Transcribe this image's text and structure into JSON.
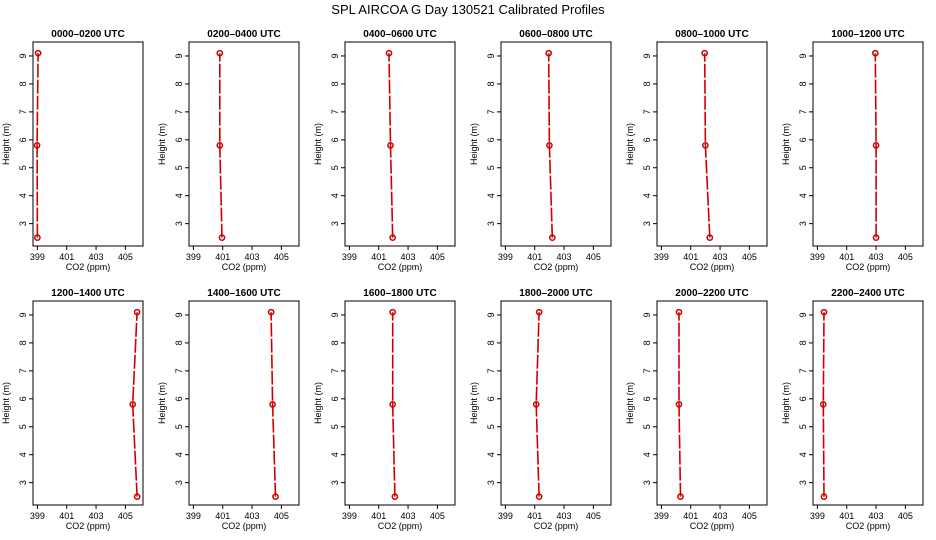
{
  "figure": {
    "title": "SPL AIRCOA G  Day 130521  Calibrated Profiles"
  },
  "colors": {
    "series": "#cc0000",
    "axis": "#000000"
  },
  "chart_data": [
    {
      "type": "line",
      "title": "0000–0200 UTC",
      "xlabel": "CO2 (ppm)",
      "ylabel": "Height (m)",
      "xlim": [
        398.7,
        406.2
      ],
      "ylim": [
        2.2,
        9.5
      ],
      "xticks": [
        399,
        401,
        403,
        405
      ],
      "yticks": [
        3,
        4,
        5,
        6,
        7,
        8,
        9
      ],
      "marker": "circle",
      "series": [
        {
          "x": [
            399.0,
            398.98,
            399.05
          ],
          "y": [
            2.5,
            5.8,
            9.1
          ]
        }
      ]
    },
    {
      "type": "line",
      "title": "0200–0400 UTC",
      "xlabel": "CO2 (ppm)",
      "ylabel": "Height (m)",
      "xlim": [
        398.7,
        406.2
      ],
      "ylim": [
        2.2,
        9.5
      ],
      "xticks": [
        399,
        401,
        403,
        405
      ],
      "yticks": [
        3,
        4,
        5,
        6,
        7,
        8,
        9
      ],
      "marker": "circle",
      "series": [
        {
          "x": [
            400.95,
            400.8,
            400.8
          ],
          "y": [
            2.5,
            5.8,
            9.1
          ]
        }
      ]
    },
    {
      "type": "line",
      "title": "0400–0600 UTC",
      "xlabel": "CO2 (ppm)",
      "ylabel": "Height (m)",
      "xlim": [
        398.7,
        406.2
      ],
      "ylim": [
        2.2,
        9.5
      ],
      "xticks": [
        399,
        401,
        403,
        405
      ],
      "yticks": [
        3,
        4,
        5,
        6,
        7,
        8,
        9
      ],
      "marker": "circle",
      "series": [
        {
          "x": [
            401.95,
            401.8,
            401.7
          ],
          "y": [
            2.5,
            5.8,
            9.1
          ]
        }
      ]
    },
    {
      "type": "line",
      "title": "0600–0800 UTC",
      "xlabel": "CO2 (ppm)",
      "ylabel": "Height (m)",
      "xlim": [
        398.7,
        406.2
      ],
      "ylim": [
        2.2,
        9.5
      ],
      "xticks": [
        399,
        401,
        403,
        405
      ],
      "yticks": [
        3,
        4,
        5,
        6,
        7,
        8,
        9
      ],
      "marker": "circle",
      "series": [
        {
          "x": [
            402.2,
            402.0,
            401.95
          ],
          "y": [
            2.5,
            5.8,
            9.1
          ]
        }
      ]
    },
    {
      "type": "line",
      "title": "0800–1000 UTC",
      "xlabel": "CO2 (ppm)",
      "ylabel": "Height (m)",
      "xlim": [
        398.7,
        406.2
      ],
      "ylim": [
        2.2,
        9.5
      ],
      "xticks": [
        399,
        401,
        403,
        405
      ],
      "yticks": [
        3,
        4,
        5,
        6,
        7,
        8,
        9
      ],
      "marker": "circle",
      "series": [
        {
          "x": [
            402.3,
            402.0,
            401.95
          ],
          "y": [
            2.5,
            5.8,
            9.1
          ]
        }
      ]
    },
    {
      "type": "line",
      "title": "1000–1200 UTC",
      "xlabel": "CO2 (ppm)",
      "ylabel": "Height (m)",
      "xlim": [
        398.7,
        406.2
      ],
      "ylim": [
        2.2,
        9.5
      ],
      "xticks": [
        399,
        401,
        403,
        405
      ],
      "yticks": [
        3,
        4,
        5,
        6,
        7,
        8,
        9
      ],
      "marker": "circle",
      "series": [
        {
          "x": [
            403.0,
            403.0,
            402.95
          ],
          "y": [
            2.5,
            5.8,
            9.1
          ]
        }
      ]
    },
    {
      "type": "line",
      "title": "1200–1400 UTC",
      "xlabel": "CO2 (ppm)",
      "ylabel": "Height (m)",
      "xlim": [
        398.7,
        406.2
      ],
      "ylim": [
        2.2,
        9.5
      ],
      "xticks": [
        399,
        401,
        403,
        405
      ],
      "yticks": [
        3,
        4,
        5,
        6,
        7,
        8,
        9
      ],
      "marker": "circle",
      "series": [
        {
          "x": [
            405.8,
            405.5,
            405.8
          ],
          "y": [
            2.5,
            5.8,
            9.1
          ]
        }
      ]
    },
    {
      "type": "line",
      "title": "1400–1600 UTC",
      "xlabel": "CO2 (ppm)",
      "ylabel": "Height (m)",
      "xlim": [
        398.7,
        406.2
      ],
      "ylim": [
        2.2,
        9.5
      ],
      "xticks": [
        399,
        401,
        403,
        405
      ],
      "yticks": [
        3,
        4,
        5,
        6,
        7,
        8,
        9
      ],
      "marker": "circle",
      "series": [
        {
          "x": [
            404.6,
            404.4,
            404.3
          ],
          "y": [
            2.5,
            5.8,
            9.1
          ]
        }
      ]
    },
    {
      "type": "line",
      "title": "1600–1800 UTC",
      "xlabel": "CO2 (ppm)",
      "ylabel": "Height (m)",
      "xlim": [
        398.7,
        406.2
      ],
      "ylim": [
        2.2,
        9.5
      ],
      "xticks": [
        399,
        401,
        403,
        405
      ],
      "yticks": [
        3,
        4,
        5,
        6,
        7,
        8,
        9
      ],
      "marker": "circle",
      "series": [
        {
          "x": [
            402.1,
            401.95,
            401.95
          ],
          "y": [
            2.5,
            5.8,
            9.1
          ]
        }
      ]
    },
    {
      "type": "line",
      "title": "1800–2000 UTC",
      "xlabel": "CO2 (ppm)",
      "ylabel": "Height (m)",
      "xlim": [
        398.7,
        406.2
      ],
      "ylim": [
        2.2,
        9.5
      ],
      "xticks": [
        399,
        401,
        403,
        405
      ],
      "yticks": [
        3,
        4,
        5,
        6,
        7,
        8,
        9
      ],
      "marker": "circle",
      "series": [
        {
          "x": [
            401.3,
            401.1,
            401.3
          ],
          "y": [
            2.5,
            5.8,
            9.1
          ]
        }
      ]
    },
    {
      "type": "line",
      "title": "2000–2200 UTC",
      "xlabel": "CO2 (ppm)",
      "ylabel": "Height (m)",
      "xlim": [
        398.7,
        406.2
      ],
      "ylim": [
        2.2,
        9.5
      ],
      "xticks": [
        399,
        401,
        403,
        405
      ],
      "yticks": [
        3,
        4,
        5,
        6,
        7,
        8,
        9
      ],
      "marker": "circle",
      "series": [
        {
          "x": [
            400.3,
            400.2,
            400.2
          ],
          "y": [
            2.5,
            5.8,
            9.1
          ]
        }
      ]
    },
    {
      "type": "line",
      "title": "2200–2400 UTC",
      "xlabel": "CO2 (ppm)",
      "ylabel": "Height (m)",
      "xlim": [
        398.7,
        406.2
      ],
      "ylim": [
        2.2,
        9.5
      ],
      "xticks": [
        399,
        401,
        403,
        405
      ],
      "yticks": [
        3,
        4,
        5,
        6,
        7,
        8,
        9
      ],
      "marker": "circle",
      "series": [
        {
          "x": [
            399.45,
            399.4,
            399.45
          ],
          "y": [
            2.5,
            5.8,
            9.1
          ]
        }
      ]
    }
  ]
}
